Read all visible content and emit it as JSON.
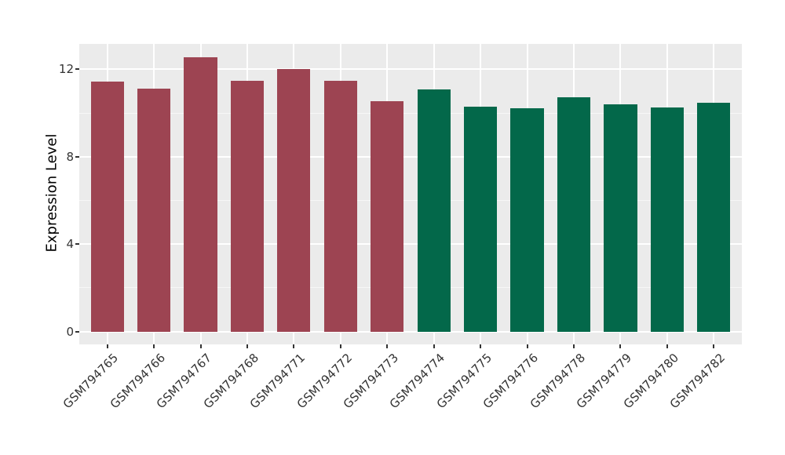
{
  "chart_data": {
    "type": "bar",
    "title": "",
    "xlabel": "",
    "ylabel": "Expression Level",
    "categories": [
      "GSM794765",
      "GSM794766",
      "GSM794767",
      "GSM794768",
      "GSM794771",
      "GSM794772",
      "GSM794773",
      "GSM794774",
      "GSM794775",
      "GSM794776",
      "GSM794778",
      "GSM794779",
      "GSM794780",
      "GSM794782"
    ],
    "values": [
      11.43,
      11.1,
      12.54,
      11.48,
      12.02,
      11.46,
      10.53,
      11.07,
      10.29,
      10.23,
      10.71,
      10.39,
      10.24,
      10.48
    ],
    "bar_groups": [
      "group1",
      "group1",
      "group1",
      "group1",
      "group1",
      "group1",
      "group1",
      "group2",
      "group2",
      "group2",
      "group2",
      "group2",
      "group2",
      "group2"
    ],
    "group_colors": {
      "group1": "#9D4452",
      "group2": "#03684A"
    },
    "yticks": [
      0,
      4,
      8,
      12
    ],
    "yticks_minor": [
      2,
      6,
      10
    ],
    "ylim": [
      -0.59,
      13.16
    ],
    "grid": true,
    "legend_position": "none",
    "panel_bg": "#EBEBEB",
    "grid_major_color": "#FFFFFF",
    "grid_minor_color": "rgba(255,255,255,0.6)",
    "bar_width_frac": 0.71
  }
}
